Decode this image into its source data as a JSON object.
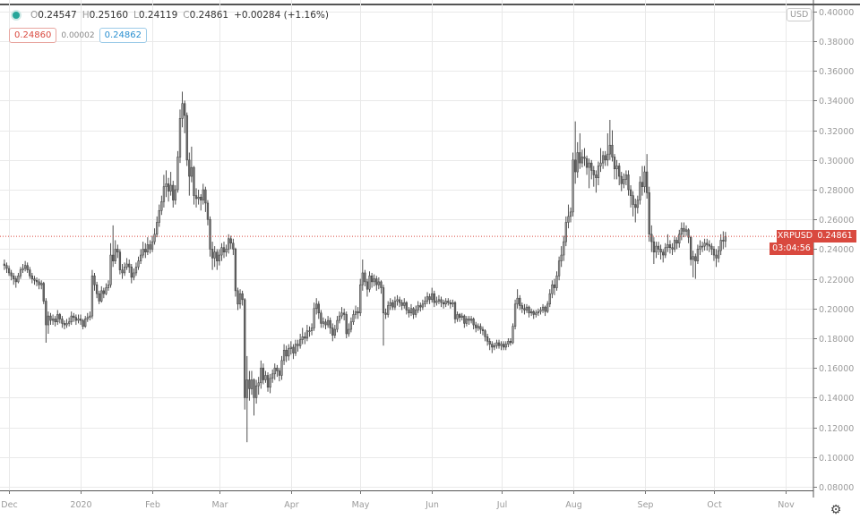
{
  "legend": {
    "status_color": "#26a69a",
    "items": [
      {
        "k": "O",
        "v": "0.24547"
      },
      {
        "k": "H",
        "v": "0.25160"
      },
      {
        "k": "L",
        "v": "0.24119"
      },
      {
        "k": "C",
        "v": "0.24861"
      }
    ],
    "change": "+0.00284 (+1.16%)"
  },
  "quotes": {
    "sell": "0.24860",
    "spread": "0.00002",
    "buy": "0.24862"
  },
  "currency": "USD",
  "price_line": {
    "symbol": "XRPUSD",
    "price": "0.24861",
    "countdown": "03:04:56",
    "color": "#d9493f"
  },
  "settings_icon": "gear-icon",
  "chart_data": {
    "type": "candlestick",
    "interval": "1D",
    "grid": true,
    "ylim": [
      0.08,
      0.4
    ],
    "y_ticks": [
      "0.40000",
      "0.38000",
      "0.36000",
      "0.34000",
      "0.32000",
      "0.30000",
      "0.28000",
      "0.26000",
      "0.24000",
      "0.22000",
      "0.20000",
      "0.18000",
      "0.16000",
      "0.14000",
      "0.12000",
      "0.10000",
      "0.08000"
    ],
    "x_ticks": [
      {
        "label": "Dec",
        "date": "2019-12-01"
      },
      {
        "label": "2020",
        "date": "2020-01-01"
      },
      {
        "label": "Feb",
        "date": "2020-02-01"
      },
      {
        "label": "Mar",
        "date": "2020-03-01"
      },
      {
        "label": "Apr",
        "date": "2020-04-01"
      },
      {
        "label": "May",
        "date": "2020-05-01"
      },
      {
        "label": "Jun",
        "date": "2020-06-01"
      },
      {
        "label": "Jul",
        "date": "2020-07-01"
      },
      {
        "label": "Aug",
        "date": "2020-08-01"
      },
      {
        "label": "Sep",
        "date": "2020-09-01"
      },
      {
        "label": "Oct",
        "date": "2020-10-01"
      },
      {
        "label": "Nov",
        "date": "2020-11-01"
      }
    ],
    "first_open": 0.23,
    "months": [
      {
        "month": "2019-11",
        "first_day": 29,
        "close": [
          0.229,
          0.227
        ],
        "high": [
          0.233,
          0.231
        ],
        "low": [
          0.226,
          0.224
        ]
      },
      {
        "month": "2019-12",
        "first_day": 1,
        "close": [
          0.224,
          0.222,
          0.22,
          0.218,
          0.222,
          0.226,
          0.227,
          0.229,
          0.226,
          0.222,
          0.22,
          0.219,
          0.218,
          0.216,
          0.217,
          0.205,
          0.189,
          0.195,
          0.192,
          0.193,
          0.191,
          0.196,
          0.193,
          0.19,
          0.189,
          0.19,
          0.191,
          0.195,
          0.194,
          0.192,
          0.193
        ],
        "high": [
          0.229,
          0.226,
          0.224,
          0.222,
          0.224,
          0.228,
          0.23,
          0.232,
          0.231,
          0.228,
          0.224,
          0.222,
          0.221,
          0.22,
          0.219,
          0.218,
          0.207,
          0.198,
          0.197,
          0.196,
          0.195,
          0.199,
          0.197,
          0.195,
          0.192,
          0.193,
          0.194,
          0.198,
          0.197,
          0.196,
          0.196
        ],
        "low": [
          0.222,
          0.219,
          0.216,
          0.214,
          0.217,
          0.22,
          0.224,
          0.225,
          0.224,
          0.22,
          0.217,
          0.216,
          0.215,
          0.213,
          0.213,
          0.203,
          0.177,
          0.183,
          0.189,
          0.189,
          0.188,
          0.189,
          0.19,
          0.187,
          0.186,
          0.187,
          0.188,
          0.189,
          0.191,
          0.189,
          0.19
        ]
      },
      {
        "month": "2020-01",
        "first_day": 1,
        "close": [
          0.192,
          0.188,
          0.193,
          0.194,
          0.195,
          0.222,
          0.216,
          0.21,
          0.205,
          0.212,
          0.21,
          0.214,
          0.216,
          0.236,
          0.232,
          0.24,
          0.238,
          0.226,
          0.224,
          0.228,
          0.23,
          0.228,
          0.221,
          0.224,
          0.228,
          0.232,
          0.236,
          0.24,
          0.238,
          0.243,
          0.24
        ],
        "high": [
          0.196,
          0.193,
          0.195,
          0.197,
          0.198,
          0.226,
          0.224,
          0.218,
          0.212,
          0.215,
          0.214,
          0.217,
          0.219,
          0.244,
          0.256,
          0.246,
          0.243,
          0.24,
          0.23,
          0.231,
          0.234,
          0.233,
          0.23,
          0.227,
          0.231,
          0.235,
          0.24,
          0.245,
          0.244,
          0.248,
          0.246
        ],
        "low": [
          0.189,
          0.186,
          0.187,
          0.191,
          0.192,
          0.193,
          0.212,
          0.207,
          0.203,
          0.204,
          0.207,
          0.209,
          0.212,
          0.214,
          0.228,
          0.23,
          0.234,
          0.223,
          0.22,
          0.222,
          0.226,
          0.224,
          0.217,
          0.219,
          0.222,
          0.226,
          0.23,
          0.234,
          0.234,
          0.236,
          0.237
        ]
      },
      {
        "month": "2020-02",
        "first_day": 1,
        "close": [
          0.245,
          0.25,
          0.258,
          0.266,
          0.272,
          0.282,
          0.284,
          0.279,
          0.283,
          0.273,
          0.28,
          0.302,
          0.328,
          0.338,
          0.33,
          0.3,
          0.289,
          0.295,
          0.276,
          0.274,
          0.275,
          0.273,
          0.28,
          0.271,
          0.26,
          0.24,
          0.234,
          0.238,
          0.232
        ],
        "high": [
          0.249,
          0.254,
          0.262,
          0.27,
          0.276,
          0.29,
          0.293,
          0.288,
          0.292,
          0.286,
          0.283,
          0.306,
          0.334,
          0.346,
          0.34,
          0.332,
          0.305,
          0.309,
          0.296,
          0.281,
          0.28,
          0.277,
          0.284,
          0.282,
          0.273,
          0.262,
          0.245,
          0.242,
          0.24
        ],
        "low": [
          0.238,
          0.243,
          0.248,
          0.255,
          0.263,
          0.268,
          0.275,
          0.272,
          0.276,
          0.268,
          0.27,
          0.278,
          0.298,
          0.322,
          0.318,
          0.296,
          0.276,
          0.285,
          0.27,
          0.268,
          0.27,
          0.266,
          0.27,
          0.265,
          0.256,
          0.235,
          0.226,
          0.228,
          0.226
        ]
      },
      {
        "month": "2020-03",
        "first_day": 1,
        "close": [
          0.236,
          0.241,
          0.238,
          0.24,
          0.247,
          0.244,
          0.24,
          0.212,
          0.203,
          0.21,
          0.206,
          0.14,
          0.152,
          0.146,
          0.152,
          0.14,
          0.148,
          0.15,
          0.16,
          0.152,
          0.155,
          0.147,
          0.153,
          0.156,
          0.16,
          0.158,
          0.155,
          0.165,
          0.172,
          0.168,
          0.173
        ],
        "high": [
          0.24,
          0.244,
          0.245,
          0.243,
          0.25,
          0.249,
          0.247,
          0.241,
          0.214,
          0.213,
          0.212,
          0.207,
          0.168,
          0.158,
          0.158,
          0.153,
          0.152,
          0.154,
          0.165,
          0.163,
          0.158,
          0.157,
          0.156,
          0.159,
          0.163,
          0.162,
          0.16,
          0.168,
          0.176,
          0.175,
          0.176
        ],
        "low": [
          0.229,
          0.232,
          0.234,
          0.235,
          0.237,
          0.24,
          0.236,
          0.208,
          0.199,
          0.2,
          0.202,
          0.132,
          0.11,
          0.138,
          0.142,
          0.128,
          0.136,
          0.142,
          0.146,
          0.149,
          0.15,
          0.144,
          0.143,
          0.15,
          0.152,
          0.154,
          0.151,
          0.152,
          0.162,
          0.164,
          0.165
        ]
      },
      {
        "month": "2020-04",
        "first_day": 1,
        "close": [
          0.174,
          0.17,
          0.176,
          0.175,
          0.179,
          0.181,
          0.18,
          0.185,
          0.185,
          0.187,
          0.2,
          0.203,
          0.197,
          0.19,
          0.191,
          0.189,
          0.192,
          0.187,
          0.182,
          0.186,
          0.192,
          0.195,
          0.197,
          0.196,
          0.183,
          0.186,
          0.191,
          0.196,
          0.198,
          0.197
        ],
        "high": [
          0.178,
          0.176,
          0.179,
          0.179,
          0.183,
          0.187,
          0.184,
          0.189,
          0.188,
          0.19,
          0.204,
          0.207,
          0.205,
          0.199,
          0.194,
          0.193,
          0.195,
          0.194,
          0.19,
          0.189,
          0.195,
          0.198,
          0.201,
          0.2,
          0.198,
          0.19,
          0.194,
          0.199,
          0.202,
          0.201
        ],
        "low": [
          0.169,
          0.166,
          0.168,
          0.171,
          0.173,
          0.176,
          0.176,
          0.178,
          0.181,
          0.182,
          0.185,
          0.196,
          0.193,
          0.187,
          0.187,
          0.186,
          0.187,
          0.183,
          0.178,
          0.18,
          0.184,
          0.19,
          0.193,
          0.192,
          0.18,
          0.181,
          0.184,
          0.189,
          0.193,
          0.193
        ]
      },
      {
        "month": "2020-05",
        "first_day": 1,
        "close": [
          0.216,
          0.224,
          0.218,
          0.213,
          0.222,
          0.218,
          0.22,
          0.216,
          0.218,
          0.214,
          0.197,
          0.196,
          0.202,
          0.204,
          0.201,
          0.205,
          0.206,
          0.204,
          0.202,
          0.204,
          0.199,
          0.197,
          0.2,
          0.196,
          0.199,
          0.202,
          0.201,
          0.203,
          0.205,
          0.208,
          0.206
        ],
        "high": [
          0.22,
          0.233,
          0.226,
          0.22,
          0.225,
          0.224,
          0.223,
          0.222,
          0.221,
          0.219,
          0.216,
          0.2,
          0.205,
          0.207,
          0.206,
          0.208,
          0.209,
          0.208,
          0.206,
          0.207,
          0.205,
          0.201,
          0.203,
          0.201,
          0.202,
          0.205,
          0.204,
          0.206,
          0.208,
          0.211,
          0.21
        ],
        "low": [
          0.195,
          0.212,
          0.215,
          0.208,
          0.211,
          0.214,
          0.215,
          0.212,
          0.213,
          0.21,
          0.175,
          0.193,
          0.194,
          0.199,
          0.199,
          0.199,
          0.202,
          0.201,
          0.199,
          0.2,
          0.196,
          0.194,
          0.195,
          0.193,
          0.194,
          0.197,
          0.198,
          0.199,
          0.201,
          0.203,
          0.203
        ]
      },
      {
        "month": "2020-06",
        "first_day": 1,
        "close": [
          0.21,
          0.204,
          0.205,
          0.206,
          0.204,
          0.203,
          0.205,
          0.204,
          0.203,
          0.204,
          0.193,
          0.196,
          0.194,
          0.195,
          0.19,
          0.193,
          0.192,
          0.193,
          0.189,
          0.187,
          0.188,
          0.186,
          0.185,
          0.181,
          0.178,
          0.176,
          0.174,
          0.175,
          0.177,
          0.175
        ],
        "high": [
          0.214,
          0.212,
          0.208,
          0.209,
          0.208,
          0.206,
          0.207,
          0.207,
          0.206,
          0.206,
          0.205,
          0.198,
          0.197,
          0.197,
          0.196,
          0.195,
          0.195,
          0.195,
          0.194,
          0.191,
          0.19,
          0.19,
          0.188,
          0.186,
          0.183,
          0.18,
          0.178,
          0.177,
          0.179,
          0.179
        ],
        "low": [
          0.204,
          0.201,
          0.202,
          0.203,
          0.201,
          0.2,
          0.201,
          0.202,
          0.2,
          0.201,
          0.19,
          0.191,
          0.191,
          0.192,
          0.187,
          0.188,
          0.189,
          0.19,
          0.186,
          0.184,
          0.185,
          0.183,
          0.182,
          0.178,
          0.175,
          0.172,
          0.17,
          0.172,
          0.173,
          0.173
        ]
      },
      {
        "month": "2020-07",
        "first_day": 1,
        "close": [
          0.176,
          0.174,
          0.176,
          0.178,
          0.177,
          0.188,
          0.203,
          0.207,
          0.202,
          0.2,
          0.199,
          0.201,
          0.197,
          0.198,
          0.196,
          0.197,
          0.198,
          0.199,
          0.201,
          0.198,
          0.203,
          0.21,
          0.216,
          0.214,
          0.222,
          0.232,
          0.236,
          0.245,
          0.258,
          0.262,
          0.265
        ],
        "high": [
          0.178,
          0.178,
          0.178,
          0.18,
          0.18,
          0.19,
          0.206,
          0.213,
          0.209,
          0.204,
          0.203,
          0.203,
          0.202,
          0.2,
          0.199,
          0.199,
          0.2,
          0.201,
          0.203,
          0.202,
          0.205,
          0.213,
          0.219,
          0.22,
          0.225,
          0.235,
          0.242,
          0.249,
          0.262,
          0.27,
          0.268
        ],
        "low": [
          0.172,
          0.172,
          0.172,
          0.174,
          0.175,
          0.176,
          0.186,
          0.2,
          0.199,
          0.197,
          0.196,
          0.197,
          0.194,
          0.195,
          0.193,
          0.194,
          0.195,
          0.196,
          0.197,
          0.195,
          0.197,
          0.201,
          0.207,
          0.209,
          0.212,
          0.219,
          0.228,
          0.232,
          0.242,
          0.254,
          0.258
        ]
      },
      {
        "month": "2020-08",
        "first_day": 1,
        "close": [
          0.3,
          0.292,
          0.305,
          0.298,
          0.302,
          0.301,
          0.295,
          0.298,
          0.293,
          0.29,
          0.288,
          0.296,
          0.298,
          0.303,
          0.3,
          0.304,
          0.31,
          0.302,
          0.294,
          0.296,
          0.289,
          0.284,
          0.287,
          0.29,
          0.28,
          0.276,
          0.27,
          0.268,
          0.273,
          0.285,
          0.282
        ],
        "high": [
          0.305,
          0.326,
          0.312,
          0.318,
          0.307,
          0.308,
          0.303,
          0.301,
          0.3,
          0.296,
          0.293,
          0.299,
          0.308,
          0.306,
          0.306,
          0.318,
          0.327,
          0.32,
          0.304,
          0.3,
          0.298,
          0.292,
          0.291,
          0.293,
          0.293,
          0.283,
          0.279,
          0.274,
          0.276,
          0.289,
          0.296
        ],
        "low": [
          0.262,
          0.284,
          0.288,
          0.294,
          0.295,
          0.296,
          0.29,
          0.281,
          0.287,
          0.282,
          0.278,
          0.283,
          0.292,
          0.294,
          0.296,
          0.296,
          0.3,
          0.299,
          0.287,
          0.287,
          0.283,
          0.279,
          0.281,
          0.283,
          0.276,
          0.268,
          0.262,
          0.258,
          0.264,
          0.27,
          0.276
        ]
      },
      {
        "month": "2020-09",
        "first_day": 1,
        "close": [
          0.292,
          0.278,
          0.25,
          0.245,
          0.238,
          0.242,
          0.24,
          0.238,
          0.236,
          0.241,
          0.243,
          0.241,
          0.24,
          0.246,
          0.244,
          0.25,
          0.254,
          0.252,
          0.253,
          0.248,
          0.233,
          0.235,
          0.232,
          0.24,
          0.242,
          0.242,
          0.244,
          0.243,
          0.242,
          0.24
        ],
        "high": [
          0.296,
          0.304,
          0.282,
          0.256,
          0.248,
          0.245,
          0.245,
          0.243,
          0.24,
          0.244,
          0.25,
          0.246,
          0.244,
          0.249,
          0.248,
          0.253,
          0.258,
          0.258,
          0.256,
          0.254,
          0.249,
          0.239,
          0.237,
          0.243,
          0.246,
          0.245,
          0.247,
          0.247,
          0.246,
          0.244
        ],
        "low": [
          0.278,
          0.274,
          0.245,
          0.238,
          0.23,
          0.234,
          0.236,
          0.233,
          0.231,
          0.234,
          0.238,
          0.237,
          0.236,
          0.238,
          0.24,
          0.241,
          0.246,
          0.248,
          0.249,
          0.244,
          0.229,
          0.221,
          0.22,
          0.23,
          0.236,
          0.238,
          0.239,
          0.239,
          0.238,
          0.236
        ]
      },
      {
        "month": "2020-10",
        "first_day": 1,
        "close": [
          0.236,
          0.234,
          0.239,
          0.246,
          0.24547,
          0.24861
        ],
        "high": [
          0.242,
          0.24,
          0.242,
          0.25,
          0.252,
          0.2516
        ],
        "low": [
          0.232,
          0.228,
          0.231,
          0.236,
          0.24,
          0.24119
        ]
      }
    ]
  }
}
